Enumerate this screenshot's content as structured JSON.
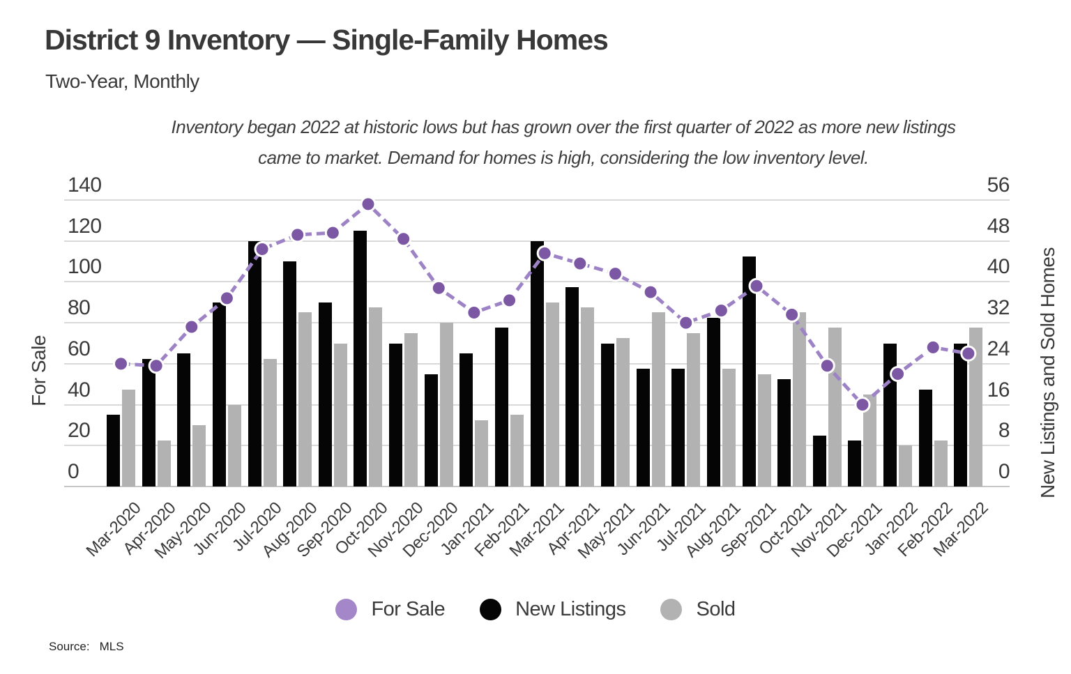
{
  "header": {
    "title": "District 9 Inventory — Single-Family Homes",
    "subtitle": "Two-Year, Monthly"
  },
  "annotation": {
    "line1": "Inventory began 2022 at historic lows but has grown over the first quarter of 2022 as more new listings",
    "line2": "came to market. Demand for homes is high, considering the low inventory level."
  },
  "chart_data": {
    "type": "bar+line",
    "title": "District 9 Inventory — Single-Family Homes",
    "categories": [
      "Mar-2020",
      "Apr-2020",
      "May-2020",
      "Jun-2020",
      "Jul-2020",
      "Aug-2020",
      "Sep-2020",
      "Oct-2020",
      "Nov-2020",
      "Dec-2020",
      "Jan-2021",
      "Feb-2021",
      "Mar-2021",
      "Apr-2021",
      "May-2021",
      "Jun-2021",
      "Jul-2021",
      "Aug-2021",
      "Sep-2021",
      "Oct-2021",
      "Nov-2021",
      "Dec-2021",
      "Jan-2022",
      "Feb-2022",
      "Mar-2022"
    ],
    "series": [
      {
        "name": "For Sale",
        "type": "line",
        "axis": "left",
        "line_color": "#9d83c6",
        "dot_color": "#7b57a4",
        "values": [
          60,
          59,
          78,
          92,
          116,
          123,
          124,
          138,
          121,
          97,
          85,
          91,
          114,
          109,
          104,
          95,
          80,
          86,
          98,
          84,
          59,
          40,
          55,
          68,
          65
        ]
      },
      {
        "name": "New Listings",
        "type": "bar",
        "axis": "right",
        "color": "#050505",
        "values": [
          14,
          25,
          26,
          36,
          48,
          44,
          36,
          50,
          28,
          22,
          26,
          31,
          48,
          39,
          28,
          23,
          23,
          33,
          45,
          21,
          10,
          9,
          28,
          19,
          28
        ]
      },
      {
        "name": "Sold",
        "type": "bar",
        "axis": "right",
        "color": "#b2b2b2",
        "values": [
          19,
          9,
          12,
          16,
          25,
          34,
          28,
          35,
          30,
          32,
          13,
          14,
          36,
          35,
          29,
          34,
          30,
          23,
          22,
          34,
          31,
          18,
          8,
          9,
          31
        ]
      }
    ],
    "left_axis": {
      "title": "For Sale",
      "min": 0,
      "max": 140,
      "step": 20,
      "ticks": [
        0,
        20,
        40,
        60,
        80,
        100,
        120,
        140
      ]
    },
    "right_axis": {
      "title": "New Listings and Sold Homes",
      "min": 0,
      "max": 56,
      "step": 8,
      "ticks": [
        0,
        8,
        16,
        24,
        32,
        40,
        48,
        56
      ]
    },
    "grid": true,
    "legend_position": "bottom"
  },
  "legend": {
    "items": [
      {
        "label": "For Sale",
        "color": "#a487c8"
      },
      {
        "label": "New Listings",
        "color": "#050505"
      },
      {
        "label": "Sold",
        "color": "#b2b2b2"
      }
    ]
  },
  "source": {
    "label": "Source:",
    "value": "MLS"
  }
}
